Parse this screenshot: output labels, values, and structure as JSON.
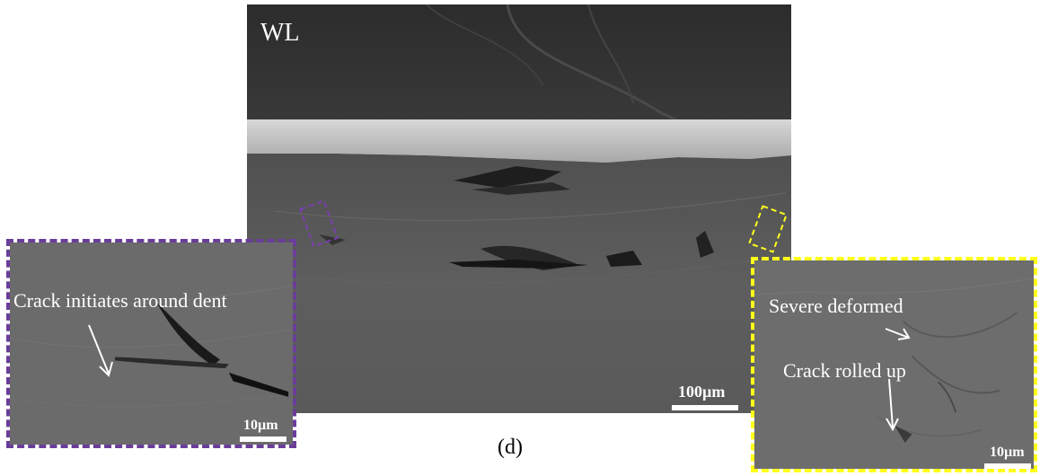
{
  "main_panel": {
    "region_label": "WL",
    "scale_label": "100µm"
  },
  "left_inset": {
    "annotation": "Crack initiates around dent",
    "scale_label": "10µm",
    "border_color": "#6a3d9a"
  },
  "right_inset": {
    "annotation_1": "Severe deformed",
    "annotation_2": "Crack rolled up",
    "scale_label": "10µm",
    "border_color": "#ffff1a"
  },
  "caption": "(d)",
  "colors": {
    "sem_dark": "#2e2e2e",
    "sem_mid": "#5c5c5c",
    "sem_bright_layer": "#c9c9c9",
    "sem_inset": "#6d6d6d",
    "annotation_text": "#ffffff"
  },
  "icons": [
    "arrow-icon"
  ]
}
